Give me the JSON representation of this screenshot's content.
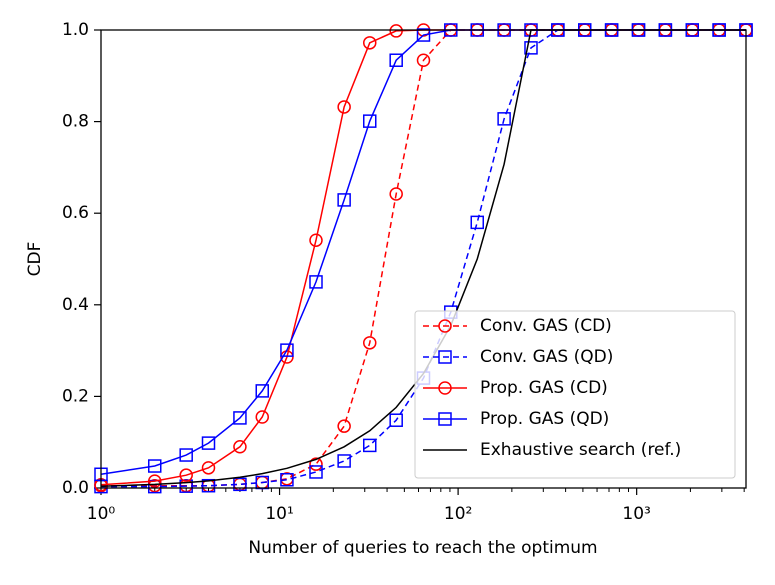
{
  "chart_data": {
    "type": "line",
    "xlabel": "Number of queries to reach the optimum",
    "ylabel": "CDF",
    "xscale": "log",
    "xlim": [
      1,
      4096
    ],
    "ylim": [
      0,
      1
    ],
    "xticks": [
      {
        "value": 1,
        "label": "10⁰"
      },
      {
        "value": 10,
        "label": "10¹"
      },
      {
        "value": 100,
        "label": "10²"
      },
      {
        "value": 1000,
        "label": "10³"
      }
    ],
    "yticks": [
      {
        "value": 0,
        "label": "0.0"
      },
      0.2,
      0.4,
      0.6,
      0.8,
      {
        "value": 1,
        "label": "1.0"
      }
    ],
    "legend": "lower right",
    "x": [
      1,
      2,
      3,
      4,
      6,
      8,
      11,
      16,
      23,
      32,
      45,
      64,
      91,
      128,
      181,
      256,
      362,
      512,
      724,
      1024,
      1448,
      2048,
      2896,
      4096
    ],
    "series": [
      {
        "name": "Conv. GAS (CD)",
        "color": "#ff0000",
        "linestyle": "dashed",
        "marker": "circle",
        "values": [
          0.005,
          0.005,
          0.005,
          0.005,
          0.008,
          0.012,
          0.02,
          0.052,
          0.135,
          0.317,
          0.642,
          0.934,
          1.0,
          1.0,
          1.0,
          1.0,
          1.0,
          1.0,
          1.0,
          1.0,
          1.0,
          1.0,
          1.0,
          1.0
        ]
      },
      {
        "name": "Conv. GAS (QD)",
        "color": "#0000ff",
        "linestyle": "dashed",
        "marker": "square",
        "values": [
          0.003,
          0.003,
          0.004,
          0.005,
          0.008,
          0.012,
          0.018,
          0.035,
          0.059,
          0.093,
          0.148,
          0.24,
          0.384,
          0.58,
          0.806,
          0.961,
          1.0,
          1.0,
          1.0,
          1.0,
          1.0,
          1.0,
          1.0,
          1.0
        ]
      },
      {
        "name": "Prop. GAS (CD)",
        "color": "#ff0000",
        "linestyle": "solid",
        "marker": "circle",
        "values": [
          0.007,
          0.015,
          0.028,
          0.044,
          0.09,
          0.155,
          0.286,
          0.541,
          0.832,
          0.972,
          0.998,
          1.0,
          1.0,
          1.0,
          1.0,
          1.0,
          1.0,
          1.0,
          1.0,
          1.0,
          1.0,
          1.0,
          1.0,
          1.0
        ]
      },
      {
        "name": "Prop. GAS (QD)",
        "color": "#0000ff",
        "linestyle": "solid",
        "marker": "square",
        "values": [
          0.03,
          0.048,
          0.072,
          0.098,
          0.153,
          0.212,
          0.301,
          0.45,
          0.629,
          0.801,
          0.934,
          0.989,
          1.0,
          1.0,
          1.0,
          1.0,
          1.0,
          1.0,
          1.0,
          1.0,
          1.0,
          1.0,
          1.0,
          1.0
        ]
      },
      {
        "name": "Exhaustive search (ref.)",
        "color": "#000000",
        "linestyle": "solid",
        "marker": "none",
        "values": [
          0.0039,
          0.0078,
          0.0117,
          0.0156,
          0.0234,
          0.0313,
          0.043,
          0.0625,
          0.09,
          0.125,
          0.176,
          0.25,
          0.355,
          0.5,
          0.707,
          1.0,
          1.0,
          1.0,
          1.0,
          1.0,
          1.0,
          1.0,
          1.0,
          1.0
        ]
      }
    ]
  }
}
